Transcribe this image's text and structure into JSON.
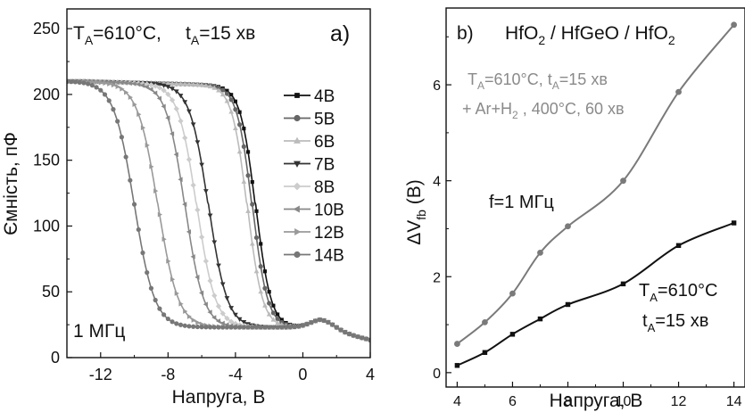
{
  "chart_data": [
    {
      "panel": "a)",
      "type": "line",
      "annotation_main": "T",
      "annotation_sub": "A",
      "annotation_rest": "=610°C,",
      "annotation2_main": "t",
      "annotation2_sub": "A",
      "annotation2_rest": "=15 хв",
      "corner_label": "1 МГц",
      "xlabel": "Напруга, В",
      "ylabel": "Ємність, пФ",
      "xlim": [
        -14,
        4
      ],
      "ylim": [
        0,
        265
      ],
      "xticks": [
        "-12",
        "-8",
        "-4",
        "0",
        "4"
      ],
      "xtick_values": [
        -12,
        -8,
        -4,
        0,
        4
      ],
      "yticks": [
        "0",
        "50",
        "100",
        "150",
        "200",
        "250"
      ],
      "ytick_values": [
        0,
        50,
        100,
        150,
        200,
        250
      ],
      "legend_position": "right",
      "series": [
        {
          "name": "4В",
          "vmid": -2.8,
          "width": 0.45,
          "color": "#111111",
          "marker": "square"
        },
        {
          "name": "5В",
          "vmid": -3.0,
          "width": 0.45,
          "color": "#666666",
          "marker": "circle"
        },
        {
          "name": "6В",
          "vmid": -3.3,
          "width": 0.45,
          "color": "#bbbbbb",
          "marker": "triangle-up"
        },
        {
          "name": "7В",
          "vmid": -5.6,
          "width": 0.55,
          "color": "#333333",
          "marker": "triangle-down"
        },
        {
          "name": "8В",
          "vmid": -6.3,
          "width": 0.55,
          "color": "#cccccc",
          "marker": "diamond"
        },
        {
          "name": "10В",
          "vmid": -7.0,
          "width": 0.55,
          "color": "#888888",
          "marker": "triangle-left"
        },
        {
          "name": "12В",
          "vmid": -8.6,
          "width": 0.6,
          "color": "#999999",
          "marker": "triangle-right"
        },
        {
          "name": "14В",
          "vmid": -10.0,
          "width": 0.6,
          "color": "#777777",
          "marker": "circle"
        }
      ]
    },
    {
      "panel": "b)",
      "type": "line",
      "title_parts": [
        "HfO",
        "2",
        " / HfGeO / HfO",
        "2"
      ],
      "annotation_gray": [
        "T",
        "A",
        "=610°C, t",
        "A",
        "=15 хв"
      ],
      "annotation_gray2": [
        "+  Ar+H",
        "2",
        " , 400°C, 60 хв"
      ],
      "annotation_freq": "f=1 МГц",
      "annotation_black": [
        "T",
        "A",
        "=610°C"
      ],
      "annotation_black2": [
        "t",
        "A",
        "=15 хв"
      ],
      "xlabel": "Напруга, В",
      "ylabel_parts": [
        "ΔV",
        "fb",
        " (В)"
      ],
      "xlim": [
        3.6,
        14.4
      ],
      "ylim": [
        -0.3,
        7.6
      ],
      "xticks": [
        "4",
        "6",
        "8",
        "10",
        "12",
        "14"
      ],
      "xtick_values": [
        4,
        6,
        8,
        10,
        12,
        14
      ],
      "yticks": [
        "0",
        "2",
        "4",
        "6"
      ],
      "ytick_values": [
        0,
        2,
        4,
        6
      ],
      "series": [
        {
          "name": "gray",
          "color": "#7a7a7a",
          "marker": "circle",
          "x": [
            4,
            5,
            6,
            7,
            8,
            10,
            12,
            14
          ],
          "y": [
            0.6,
            1.05,
            1.65,
            2.5,
            3.05,
            4.0,
            5.85,
            7.25
          ]
        },
        {
          "name": "black",
          "color": "#111111",
          "marker": "square",
          "x": [
            4,
            5,
            6,
            7,
            8,
            10,
            12,
            14
          ],
          "y": [
            0.15,
            0.42,
            0.8,
            1.12,
            1.42,
            1.85,
            2.65,
            3.12
          ]
        }
      ]
    }
  ]
}
